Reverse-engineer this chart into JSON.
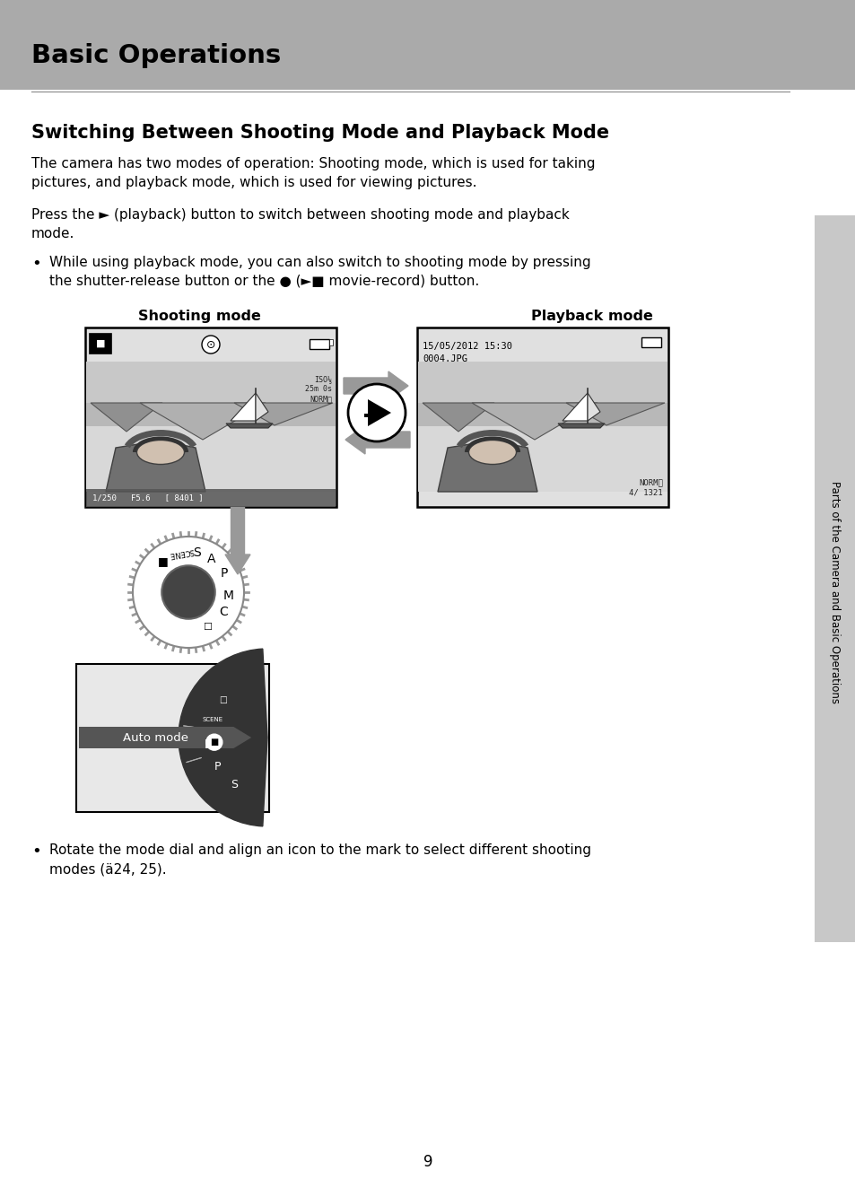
{
  "bg_color": "#ffffff",
  "header_bg": "#aaaaaa",
  "header_text": "Basic Operations",
  "section_title": "Switching Between Shooting Mode and Playback Mode",
  "body_text_1": "The camera has two modes of operation: Shooting mode, which is used for taking\npictures, and playback mode, which is used for viewing pictures.",
  "body_text_2_pre": "Press the ",
  "body_text_2_btn": "►",
  "body_text_2_post": " (playback) button to switch between shooting mode and playback\nmode.",
  "bullet_1_pre": "While using playback mode, you can also switch to shooting mode by pressing\nthe shutter-release button or the ",
  "bullet_1_mid": "●",
  "bullet_1_post": " (►■ movie-record) button.",
  "label_shooting": "Shooting mode",
  "label_playback": "Playback mode",
  "playback_date": "15/05/2012 15:30",
  "playback_file": "0004.JPG",
  "bullet_2": "Rotate the mode dial and align an icon to the mark to select different shooting\nmodes (ä24, 25).",
  "sidebar_text": "Parts of the Camera and Basic Operations",
  "page_number": "9",
  "arrow_color": "#999999",
  "sidebar_bg": "#c8c8c8",
  "screen_bg": "#e0e0e0",
  "screen_border": "#000000",
  "info_bar_bg": "#555555",
  "dial_outer": "#dddddd",
  "dial_inner": "#444444",
  "auto_bg": "#e8e8e8",
  "wedge_color": "#333333",
  "auto_label_bg": "#555555"
}
